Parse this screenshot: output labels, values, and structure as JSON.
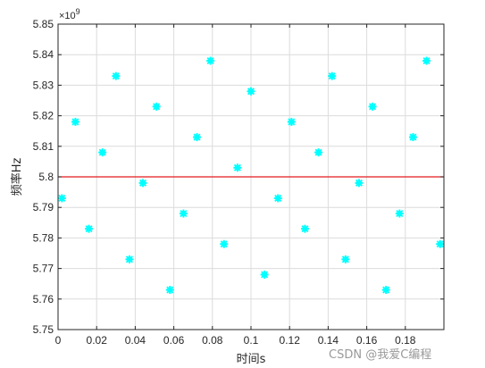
{
  "chart_data": {
    "type": "scatter",
    "xlabel": "时间s",
    "ylabel": "频率Hz",
    "y_exponent_label": "×10",
    "y_exponent_power": "9",
    "xlim": [
      0,
      0.2
    ],
    "ylim": [
      5.75,
      5.85
    ],
    "x_ticks": [
      0,
      0.02,
      0.04,
      0.06,
      0.08,
      0.1,
      0.12,
      0.14,
      0.16,
      0.18
    ],
    "x_tick_labels": [
      "0",
      "0.02",
      "0.04",
      "0.06",
      "0.08",
      "0.1",
      "0.12",
      "0.14",
      "0.16",
      "0.18"
    ],
    "y_ticks": [
      5.75,
      5.76,
      5.77,
      5.78,
      5.79,
      5.8,
      5.81,
      5.82,
      5.83,
      5.84,
      5.85
    ],
    "y_tick_labels": [
      "5.75",
      "5.76",
      "5.77",
      "5.78",
      "5.79",
      "5.8",
      "5.81",
      "5.82",
      "5.83",
      "5.84",
      "5.85"
    ],
    "grid": true,
    "marker_color": "#00FFFF",
    "reference_line": {
      "y": 5.8,
      "color": "#E31A1C"
    },
    "points": [
      {
        "x": 0.002,
        "y": 5.793
      },
      {
        "x": 0.009,
        "y": 5.818
      },
      {
        "x": 0.016,
        "y": 5.783
      },
      {
        "x": 0.023,
        "y": 5.808
      },
      {
        "x": 0.03,
        "y": 5.833
      },
      {
        "x": 0.037,
        "y": 5.773
      },
      {
        "x": 0.044,
        "y": 5.798
      },
      {
        "x": 0.051,
        "y": 5.823
      },
      {
        "x": 0.058,
        "y": 5.763
      },
      {
        "x": 0.065,
        "y": 5.788
      },
      {
        "x": 0.072,
        "y": 5.813
      },
      {
        "x": 0.079,
        "y": 5.838
      },
      {
        "x": 0.086,
        "y": 5.778
      },
      {
        "x": 0.093,
        "y": 5.803
      },
      {
        "x": 0.1,
        "y": 5.828
      },
      {
        "x": 0.107,
        "y": 5.768
      },
      {
        "x": 0.114,
        "y": 5.793
      },
      {
        "x": 0.121,
        "y": 5.818
      },
      {
        "x": 0.128,
        "y": 5.783
      },
      {
        "x": 0.135,
        "y": 5.808
      },
      {
        "x": 0.142,
        "y": 5.833
      },
      {
        "x": 0.149,
        "y": 5.773
      },
      {
        "x": 0.156,
        "y": 5.798
      },
      {
        "x": 0.163,
        "y": 5.823
      },
      {
        "x": 0.17,
        "y": 5.763
      },
      {
        "x": 0.177,
        "y": 5.788
      },
      {
        "x": 0.184,
        "y": 5.813
      },
      {
        "x": 0.191,
        "y": 5.838
      },
      {
        "x": 0.198,
        "y": 5.778
      }
    ]
  },
  "watermark": "CSDN @我爱C编程"
}
